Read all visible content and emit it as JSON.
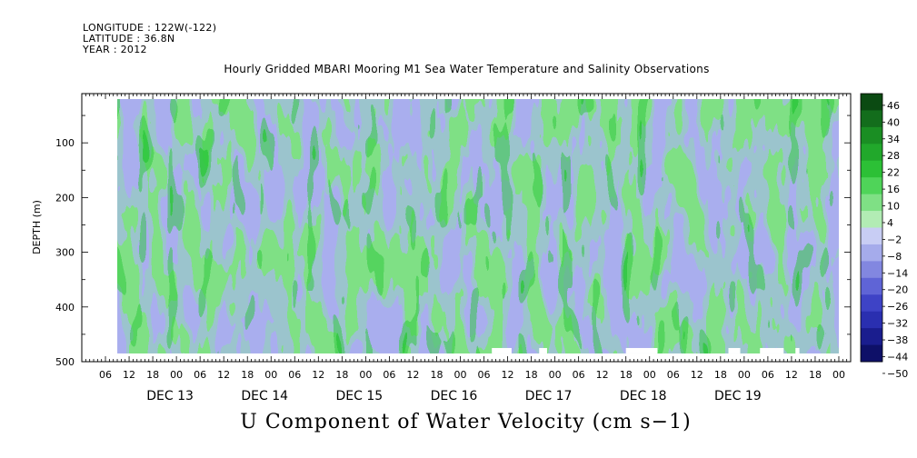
{
  "header": {
    "longitude": "LONGITUDE : 122W(-122)",
    "latitude": "LATITUDE : 36.8N",
    "year": "YEAR : 2012"
  },
  "title": "Hourly Gridded MBARI Mooring M1 Sea Water Temperature and Salinity Observations",
  "subtitle": "U Component of Water Velocity (cm s−1)",
  "chart_data": {
    "type": "heatmap",
    "ylabel": "DEPTH (m)",
    "ylim": [
      500,
      10
    ],
    "y_reversed": true,
    "y_ticks": [
      100,
      200,
      300,
      400,
      500
    ],
    "x_start": "DEC 12 00:00",
    "x_end": "DEC 20 03:00",
    "x_hour_ticks": [
      "06",
      "12",
      "18",
      "00",
      "06",
      "12",
      "18",
      "00",
      "06",
      "12",
      "18",
      "00",
      "06",
      "12",
      "18",
      "00",
      "06",
      "12",
      "18",
      "00",
      "06",
      "12",
      "18",
      "00",
      "06",
      "12",
      "18",
      "00",
      "06",
      "12",
      "18",
      "00"
    ],
    "x_day_labels": [
      "DEC 13",
      "DEC 14",
      "DEC 15",
      "DEC 16",
      "DEC 17",
      "DEC 18",
      "DEC 19"
    ],
    "data_range": {
      "x_start": "DEC 12 09:00",
      "x_end": "DEC 20 00:00",
      "depth_min": 20,
      "depth_max": 485
    },
    "colorbar": {
      "levels": [
        "46",
        "40",
        "34",
        "28",
        "22",
        "16",
        "10",
        "4",
        "−2",
        "−8",
        "−14",
        "−20",
        "−26",
        "−32",
        "−38",
        "−44",
        "−50"
      ],
      "colors": [
        "#0b4a12",
        "#136d1c",
        "#1a8e23",
        "#21a82b",
        "#2cc036",
        "#4fd459",
        "#7fe085",
        "#b2ecb4",
        "#c8cdf4",
        "#a5abeb",
        "#8287e0",
        "#5f64d6",
        "#3e43c6",
        "#2a2fb0",
        "#1a1d8e",
        "#0e1068"
      ]
    },
    "missing_data": [
      {
        "from": "DEC 16 08:00",
        "to": "DEC 16 13:00"
      },
      {
        "from": "DEC 16 20:00",
        "to": "DEC 16 22:00"
      },
      {
        "from": "DEC 17 18:00",
        "to": "DEC 18 02:00"
      },
      {
        "from": "DEC 18 20:00",
        "to": "DEC 18 23:00"
      },
      {
        "from": "DEC 19 04:00",
        "to": "DEC 19 10:00"
      },
      {
        "from": "DEC 19 13:00",
        "to": "DEC 19 14:00"
      }
    ]
  }
}
